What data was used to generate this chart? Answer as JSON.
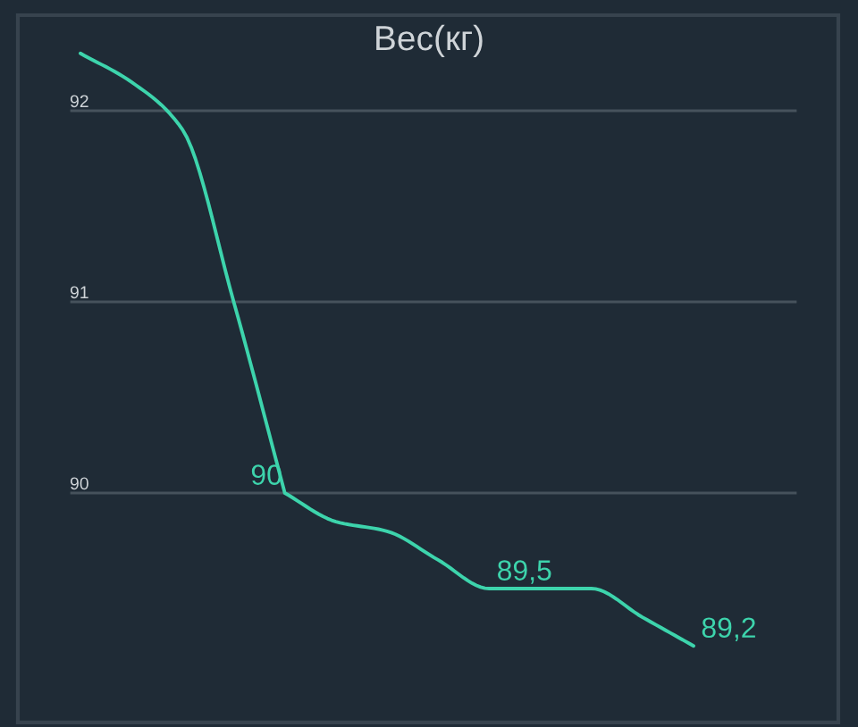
{
  "chart_data": {
    "type": "line",
    "title": "Вес(кг)",
    "categories": [
      null,
      null,
      null,
      null,
      null,
      null,
      null,
      null,
      null,
      null,
      null,
      null,
      null
    ],
    "series": [
      {
        "color": "#3dd4ac",
        "values": [
          92.3,
          92.15,
          91.9,
          91.0,
          90.0,
          89.85,
          89.8,
          89.65,
          89.5,
          89.5,
          89.5,
          89.35,
          89.2
        ],
        "value_labels": [
          null,
          null,
          null,
          null,
          "90",
          null,
          null,
          null,
          "89,5",
          null,
          null,
          null,
          "89,2"
        ]
      }
    ],
    "ylim": [
      88.8,
      92.5
    ],
    "yticks": [
      90,
      91,
      92
    ],
    "grid": "y",
    "marker": "none",
    "line_style": "solid"
  }
}
